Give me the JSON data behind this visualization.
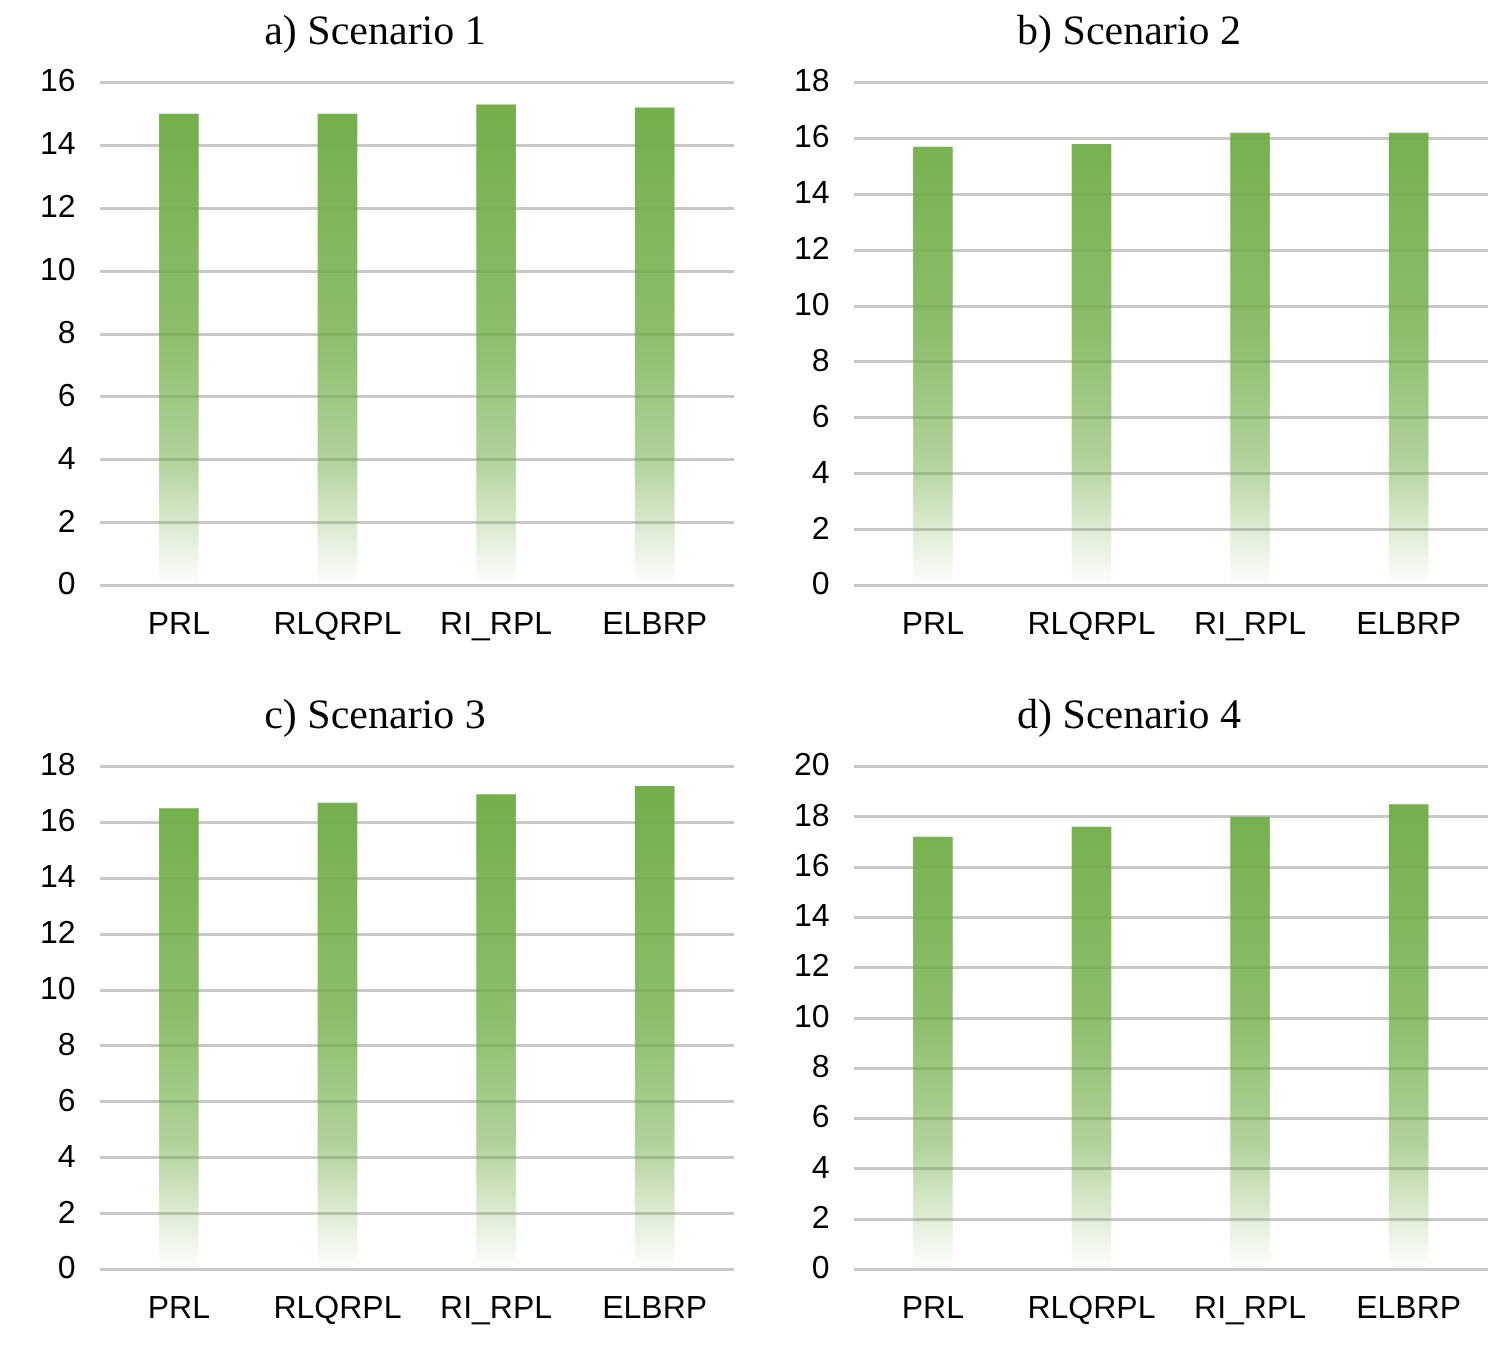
{
  "chart_data": [
    {
      "type": "bar",
      "title": "a) Scenario 1",
      "categories": [
        "PRL",
        "RLQRPL",
        "RI_RPL",
        "ELBRP"
      ],
      "values": [
        15.0,
        15.0,
        15.3,
        15.2
      ],
      "color": "#70ad47",
      "ylim": [
        0,
        16
      ],
      "yticks": [
        0,
        2,
        4,
        6,
        8,
        10,
        12,
        14,
        16
      ],
      "grid": "y",
      "legend": false
    },
    {
      "type": "bar",
      "title": "b) Scenario 2",
      "categories": [
        "PRL",
        "RLQRPL",
        "RI_RPL",
        "ELBRP"
      ],
      "values": [
        15.7,
        15.8,
        16.2,
        16.2
      ],
      "color": "#70ad47",
      "ylim": [
        0,
        18
      ],
      "yticks": [
        0,
        2,
        4,
        6,
        8,
        10,
        12,
        14,
        16,
        18
      ],
      "grid": "y",
      "legend": false
    },
    {
      "type": "bar",
      "title": "c) Scenario 3",
      "categories": [
        "PRL",
        "RLQRPL",
        "RI_RPL",
        "ELBRP"
      ],
      "values": [
        16.5,
        16.7,
        17.0,
        17.3
      ],
      "color": "#70ad47",
      "ylim": [
        0,
        18
      ],
      "yticks": [
        0,
        2,
        4,
        6,
        8,
        10,
        12,
        14,
        16,
        18
      ],
      "grid": "y",
      "legend": false
    },
    {
      "type": "bar",
      "title": "d) Scenario 4",
      "categories": [
        "PRL",
        "RLQRPL",
        "RI_RPL",
        "ELBRP"
      ],
      "values": [
        17.2,
        17.6,
        18.0,
        18.5
      ],
      "color": "#70ad47",
      "ylim": [
        0,
        20
      ],
      "yticks": [
        0,
        2,
        4,
        6,
        8,
        10,
        12,
        14,
        16,
        18,
        20
      ],
      "grid": "y",
      "legend": false
    }
  ]
}
